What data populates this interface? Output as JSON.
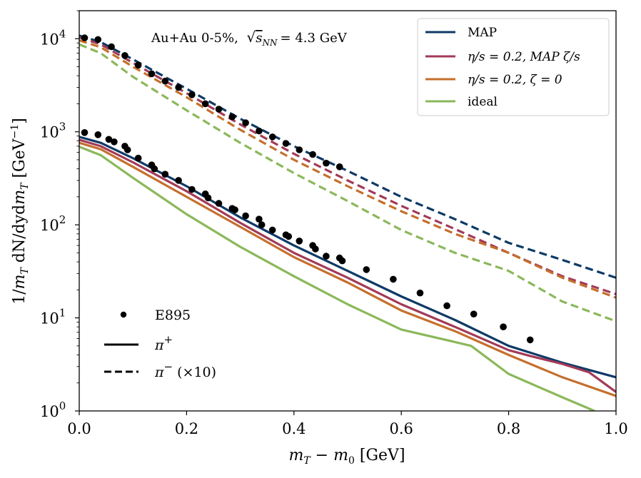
{
  "chart_data": {
    "type": "line",
    "title": "",
    "annotation": "Au+Au 0-5%, √s_NN = 4.3 GeV",
    "annotation_parts": {
      "system": "Au+Au 0-5%,",
      "sqrt": "√",
      "s": "s",
      "sub": "NN",
      "equals": "= 4.3 GeV"
    },
    "xlabel": "m_T − m_0 [GeV]",
    "xlabel_parts": {
      "m": "m",
      "sub_t": "T",
      "minus": " − ",
      "m0": "m",
      "sub_0": "0",
      "unit": " [GeV]"
    },
    "ylabel": "1/m_T dN/dydm_T [GeV^−1]",
    "ylabel_parts": {
      "pre": "1/",
      "m": "m",
      "sub_t": "T",
      "mid": " dN/dyd",
      "m2": "m",
      "sub_t2": "T",
      "unit": " [GeV",
      "exp": "−1",
      "close": "]"
    },
    "xlim": [
      0.0,
      1.0
    ],
    "ylim": [
      1,
      20000
    ],
    "yscale": "log",
    "xticks": [
      {
        "value": 0.0,
        "label": "0.0"
      },
      {
        "value": 0.2,
        "label": "0.2"
      },
      {
        "value": 0.4,
        "label": "0.4"
      },
      {
        "value": 0.6,
        "label": "0.6"
      },
      {
        "value": 0.8,
        "label": "0.8"
      },
      {
        "value": 1.0,
        "label": "1.0"
      }
    ],
    "yticks": [
      {
        "value": 1,
        "base": "10",
        "exp": "0"
      },
      {
        "value": 10,
        "base": "10",
        "exp": "1"
      },
      {
        "value": 100,
        "base": "10",
        "exp": "2"
      },
      {
        "value": 1000,
        "base": "10",
        "exp": "3"
      },
      {
        "value": 10000,
        "base": "10",
        "exp": "4"
      }
    ],
    "colors": {
      "MAP": "#0e3a66",
      "eta_map_zeta": "#a23a58",
      "eta_zeta0": "#c56f2c",
      "ideal": "#8bb85a",
      "data": "#000000"
    },
    "legend_models": [
      {
        "key": "MAP",
        "label": "MAP"
      },
      {
        "key": "eta_map_zeta",
        "label": "η/s = 0.2,  MAP ζ/s"
      },
      {
        "key": "eta_zeta0",
        "label": "η/s = 0.2,  ζ = 0"
      },
      {
        "key": "ideal",
        "label": "ideal"
      }
    ],
    "legend_models_position": "top-right",
    "legend_species": [
      {
        "key": "data",
        "label": "E895"
      },
      {
        "key": "piplus",
        "label": "π⁺",
        "base": "π",
        "sup": "+"
      },
      {
        "key": "piminus",
        "label": "π⁻ (×10)",
        "base": "π",
        "sup": "−",
        "suffix": " (×10)"
      }
    ],
    "legend_species_position": "bottom-left",
    "series": [
      {
        "name": "MAP π⁺",
        "color_key": "MAP",
        "dashed": false,
        "x": [
          0.0,
          0.04,
          0.1,
          0.2,
          0.3,
          0.4,
          0.5,
          0.6,
          0.7,
          0.8,
          0.9,
          1.0
        ],
        "y": [
          880,
          760,
          520,
          260,
          120,
          60,
          32,
          17,
          9.5,
          5.0,
          3.3,
          2.3
        ]
      },
      {
        "name": "η/s=0.2 MAP ζ/s π⁺",
        "color_key": "eta_map_zeta",
        "dashed": false,
        "x": [
          0.0,
          0.04,
          0.1,
          0.2,
          0.3,
          0.4,
          0.5,
          0.6,
          0.7,
          0.8,
          0.84,
          0.9,
          0.95,
          1.0
        ],
        "y": [
          820,
          700,
          470,
          230,
          105,
          50,
          27,
          14,
          8.0,
          4.5,
          3.9,
          3.2,
          2.6,
          1.6
        ]
      },
      {
        "name": "η/s=0.2 ζ=0 π⁺",
        "color_key": "eta_zeta0",
        "dashed": false,
        "x": [
          0.0,
          0.04,
          0.1,
          0.2,
          0.3,
          0.4,
          0.5,
          0.6,
          0.7,
          0.8,
          0.9,
          1.0
        ],
        "y": [
          760,
          650,
          420,
          200,
          95,
          45,
          24,
          12,
          7.2,
          4.0,
          2.3,
          1.45
        ]
      },
      {
        "name": "ideal π⁺",
        "color_key": "ideal",
        "dashed": false,
        "x": [
          0.0,
          0.04,
          0.1,
          0.2,
          0.3,
          0.4,
          0.5,
          0.6,
          0.7,
          0.73,
          0.8,
          0.9,
          0.96
        ],
        "y": [
          690,
          560,
          320,
          130,
          58,
          28,
          14,
          7.5,
          5.5,
          5.0,
          2.5,
          1.4,
          1.0
        ]
      },
      {
        "name": "MAP π⁻ (×10)",
        "color_key": "MAP",
        "dashed": true,
        "x": [
          0.0,
          0.04,
          0.1,
          0.2,
          0.3,
          0.4,
          0.5,
          0.6,
          0.7,
          0.8,
          0.9,
          1.0
        ],
        "y": [
          10800,
          9200,
          6000,
          2900,
          1380,
          700,
          380,
          200,
          115,
          64,
          42,
          27
        ]
      },
      {
        "name": "η/s=0.2 MAP ζ/s π⁻ (×10)",
        "color_key": "eta_map_zeta",
        "dashed": true,
        "x": [
          0.0,
          0.04,
          0.1,
          0.2,
          0.3,
          0.4,
          0.5,
          0.6,
          0.7,
          0.8,
          0.9,
          1.0
        ],
        "y": [
          10300,
          8700,
          5500,
          2600,
          1200,
          580,
          300,
          160,
          90,
          50,
          28,
          18
        ]
      },
      {
        "name": "η/s=0.2 ζ=0 π⁻ (×10)",
        "color_key": "eta_zeta0",
        "dashed": true,
        "x": [
          0.0,
          0.04,
          0.1,
          0.2,
          0.3,
          0.4,
          0.5,
          0.6,
          0.7,
          0.8,
          0.9,
          1.0
        ],
        "y": [
          9600,
          8100,
          5000,
          2350,
          1050,
          500,
          260,
          140,
          80,
          50,
          27,
          16.5
        ]
      },
      {
        "name": "ideal π⁻ (×10)",
        "color_key": "ideal",
        "dashed": true,
        "x": [
          0.0,
          0.04,
          0.1,
          0.2,
          0.3,
          0.4,
          0.5,
          0.6,
          0.7,
          0.8,
          0.9,
          1.0
        ],
        "y": [
          8700,
          7000,
          3900,
          1700,
          760,
          360,
          180,
          88,
          50,
          32,
          15,
          9.2
        ]
      }
    ],
    "data_points": {
      "name": "E895",
      "piplus": {
        "x": [
          0.01,
          0.035,
          0.055,
          0.065,
          0.085,
          0.09,
          0.11,
          0.135,
          0.14,
          0.16,
          0.185,
          0.21,
          0.235,
          0.24,
          0.26,
          0.285,
          0.29,
          0.31,
          0.335,
          0.34,
          0.36,
          0.385,
          0.39,
          0.41,
          0.435,
          0.44,
          0.46,
          0.485,
          0.49,
          0.535,
          0.585,
          0.635,
          0.685,
          0.735,
          0.79,
          0.84
        ],
        "y": [
          980,
          930,
          830,
          780,
          700,
          640,
          520,
          440,
          400,
          350,
          300,
          240,
          215,
          195,
          170,
          150,
          145,
          125,
          115,
          100,
          88,
          78,
          75,
          67,
          60,
          55,
          46,
          44,
          41,
          33,
          26,
          18.5,
          13.5,
          11.0,
          8.0,
          5.8
        ]
      },
      "piminus": {
        "x": [
          0.01,
          0.035,
          0.06,
          0.085,
          0.11,
          0.135,
          0.16,
          0.185,
          0.21,
          0.235,
          0.26,
          0.285,
          0.31,
          0.335,
          0.36,
          0.385,
          0.41,
          0.435,
          0.46,
          0.485
        ],
        "y": [
          10200,
          9800,
          8200,
          6600,
          5200,
          4200,
          3500,
          3000,
          2500,
          2000,
          1750,
          1450,
          1250,
          1020,
          880,
          750,
          640,
          570,
          460,
          420
        ]
      }
    }
  }
}
